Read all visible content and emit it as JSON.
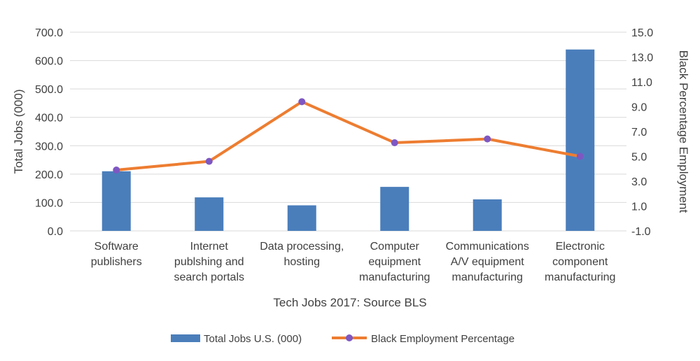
{
  "chart_data": {
    "type": "bar",
    "categories": [
      [
        "Software",
        "publishers"
      ],
      [
        "Internet",
        "publshing and",
        "search portals"
      ],
      [
        "Data processing,",
        "hosting"
      ],
      [
        "Computer",
        "equipment",
        "manufacturing"
      ],
      [
        "Communications",
        "A/V equipment",
        "manufacturing"
      ],
      [
        "Electronic",
        "component",
        "manufacturing"
      ]
    ],
    "series": [
      {
        "name": "Total Jobs U.S. (000)",
        "type": "bar",
        "axis": "left",
        "color": "#4a7ebb",
        "values": [
          210,
          118,
          90,
          155,
          111,
          639
        ]
      },
      {
        "name": "Black Employment Percentage",
        "type": "line",
        "axis": "right",
        "color": "#ed7d31",
        "marker_color": "#7e57c2",
        "values": [
          3.9,
          4.6,
          9.4,
          6.1,
          6.4,
          5.0
        ]
      }
    ],
    "xlabel": "Tech Jobs 2017: Source BLS",
    "ylabel": "Total Jobs (000)",
    "y2label": "Black Percentage Employment",
    "ylim": [
      0,
      700
    ],
    "y2lim": [
      -1,
      15
    ],
    "yticks": [
      "0.0",
      "100.0",
      "200.0",
      "300.0",
      "400.0",
      "500.0",
      "600.0",
      "700.0"
    ],
    "y2ticks": [
      "-1.0",
      "1.0",
      "3.0",
      "5.0",
      "7.0",
      "9.0",
      "11.0",
      "13.0",
      "15.0"
    ],
    "grid": true,
    "legend": "bottom"
  }
}
